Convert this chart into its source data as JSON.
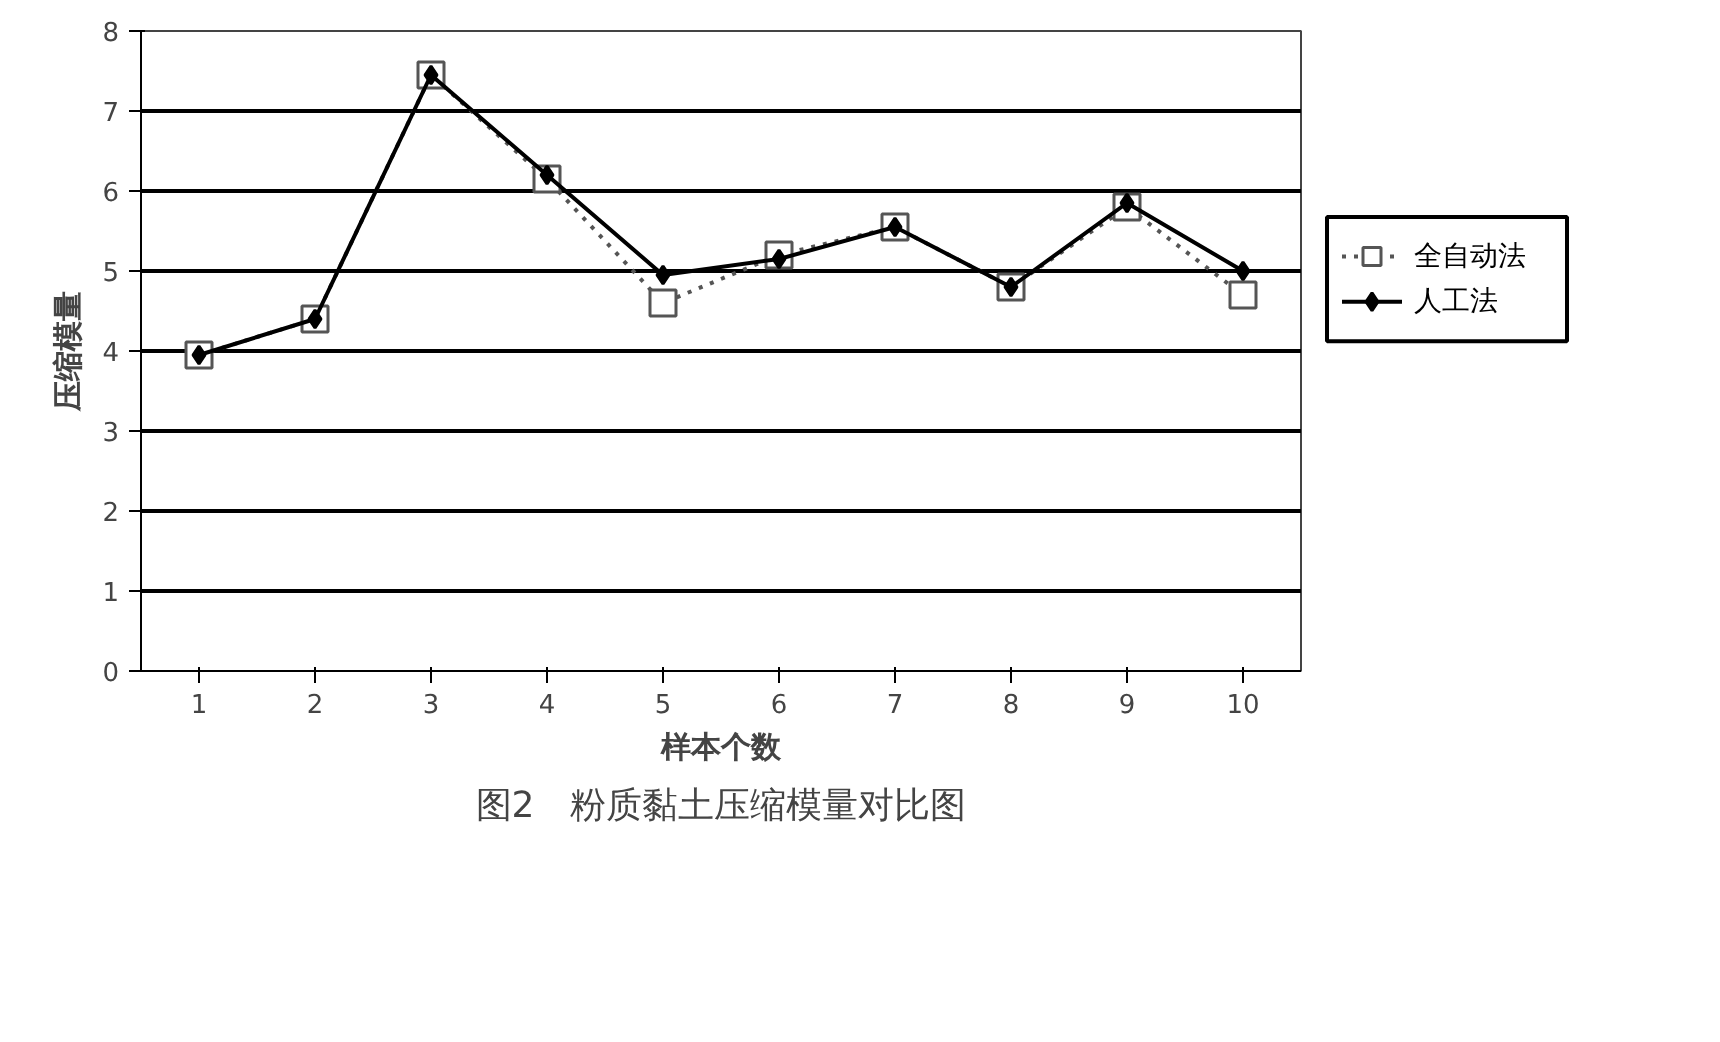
{
  "chart_data": {
    "type": "line",
    "title": "图2　粉质黏土压缩模量对比图",
    "xlabel": "样本个数",
    "ylabel": "压缩模量",
    "categories": [
      "1",
      "2",
      "3",
      "4",
      "5",
      "6",
      "7",
      "8",
      "9",
      "10"
    ],
    "series": [
      {
        "name": "全自动法",
        "color": "#555555",
        "marker": "square",
        "line_style": "dotted",
        "values": [
          3.95,
          4.4,
          7.45,
          6.15,
          4.6,
          5.2,
          5.55,
          4.8,
          5.8,
          4.7
        ]
      },
      {
        "name": "人工法",
        "color": "#000000",
        "marker": "diamond",
        "line_style": "solid",
        "values": [
          3.95,
          4.4,
          7.45,
          6.2,
          4.95,
          5.15,
          5.55,
          4.8,
          5.85,
          5.0
        ]
      }
    ],
    "ylim": [
      0,
      8
    ],
    "yticks": [
      0,
      1,
      2,
      3,
      4,
      5,
      6,
      7,
      8
    ],
    "grid": "y",
    "legend": "right"
  }
}
